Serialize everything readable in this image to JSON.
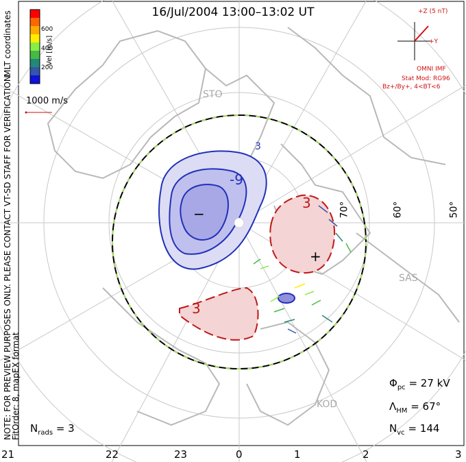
{
  "title": "16/Jul/2004 13:00–13:02 UT",
  "side_note": "NOTE: FOR PREVIEW PURPOSES ONLY. PLEASE CONTACT VT-SD STAFF FOR VERIFICATION.",
  "fit_order": "FitOrder: 8, mapEX format",
  "coordinates": "MLT coordinates",
  "colorbar": {
    "label": "Vel [m/s]",
    "ticks": [
      "600",
      "400",
      "200"
    ],
    "colors": [
      "#ff0000",
      "#ff6600",
      "#ffaa00",
      "#ffee00",
      "#88ee44",
      "#44bb44",
      "#228877",
      "#3355aa",
      "#1111dd"
    ]
  },
  "vector_scale": "1000 m/s",
  "imf": {
    "z_label": "+Z (5 nT)",
    "y_label": "+Y",
    "source": "OMNI IMF",
    "model": "Stat Mod: RG96",
    "condition": "Bz+/By+, 4<BT<6"
  },
  "lat_labels": [
    "70°",
    "60°",
    "50°"
  ],
  "contour_labels": [
    "-9",
    "3",
    "3",
    "3"
  ],
  "markers": {
    "min": "−",
    "max": "+"
  },
  "sites": [
    "STO",
    "SAS",
    "KOD"
  ],
  "stats": {
    "phi_pc": "= 27 kV",
    "lambda_hm": "= 67°",
    "n_vc": "= 144",
    "n_rads": "= 3"
  },
  "stats_symbols": {
    "phi": "Φ",
    "phi_sub": "pc",
    "lambda": "Λ",
    "lambda_sub": "HM",
    "n": "N",
    "nvc_sub": "vc",
    "nrads_sub": "rads"
  },
  "mlt_ticks": [
    "21",
    "22",
    "23",
    "0",
    "1",
    "2",
    "3"
  ]
}
